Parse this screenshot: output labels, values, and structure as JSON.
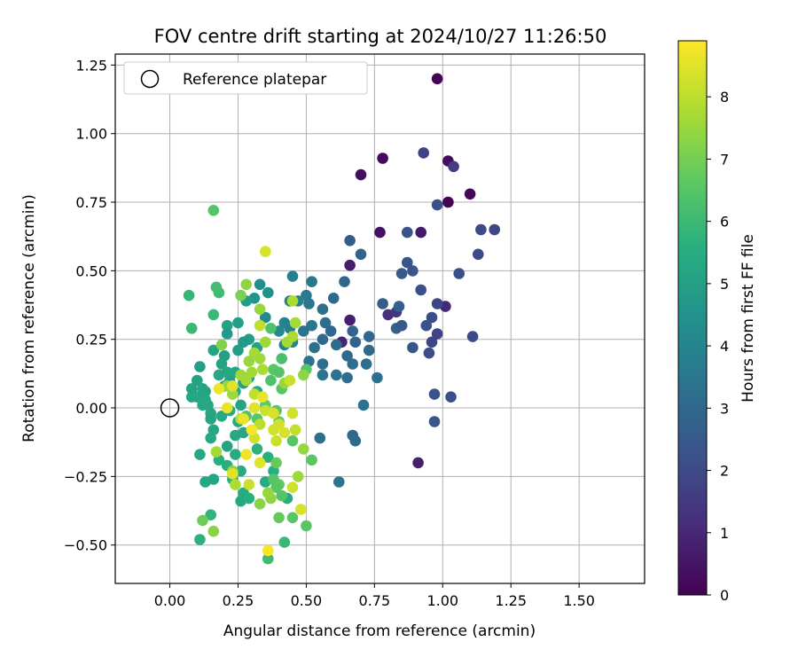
{
  "chart_data": {
    "type": "scatter",
    "title": "FOV centre drift starting at 2024/10/27 11:26:50",
    "xlabel": "Angular distance from reference (arcmin)",
    "ylabel": "Rotation from reference (arcmin)",
    "xlim": [
      -0.2,
      1.74
    ],
    "ylim": [
      -0.64,
      1.29
    ],
    "xticks": [
      0.0,
      0.25,
      0.5,
      0.75,
      1.0,
      1.25,
      1.5
    ],
    "xtick_labels": [
      "0.00",
      "0.25",
      "0.50",
      "0.75",
      "1.00",
      "1.25",
      "1.50"
    ],
    "yticks": [
      -0.5,
      -0.25,
      0.0,
      0.25,
      0.5,
      0.75,
      1.0,
      1.25
    ],
    "ytick_labels": [
      "−0.50",
      "−0.25",
      "0.00",
      "0.25",
      "0.50",
      "0.75",
      "1.00",
      "1.25"
    ],
    "grid": true,
    "legend": {
      "placement": "top-left",
      "label": "Reference platepar"
    },
    "reference_point": {
      "x": 0.0,
      "y": 0.0
    },
    "colorbar": {
      "label": "Hours from first FF file",
      "colormap": "viridis",
      "range": [
        0,
        8.9
      ],
      "ticks": [
        0,
        1,
        2,
        3,
        4,
        5,
        6,
        7,
        8
      ],
      "tick_labels": [
        "0",
        "1",
        "2",
        "3",
        "4",
        "5",
        "6",
        "7",
        "8"
      ]
    },
    "points": [
      [
        0.98,
        1.2,
        0.1
      ],
      [
        1.02,
        0.9,
        0.3
      ],
      [
        0.78,
        0.91,
        0.2
      ],
      [
        0.7,
        0.85,
        0.3
      ],
      [
        1.1,
        0.78,
        0.2
      ],
      [
        1.02,
        0.75,
        0.1
      ],
      [
        0.77,
        0.64,
        0.4
      ],
      [
        0.92,
        0.64,
        0.6
      ],
      [
        0.66,
        0.52,
        0.7
      ],
      [
        0.66,
        0.32,
        0.8
      ],
      [
        0.63,
        0.24,
        0.9
      ],
      [
        0.91,
        -0.2,
        0.8
      ],
      [
        1.01,
        0.37,
        1.0
      ],
      [
        0.93,
        0.93,
        1.8
      ],
      [
        1.04,
        0.88,
        1.6
      ],
      [
        0.98,
        0.74,
        2.2
      ],
      [
        1.14,
        0.65,
        2.0
      ],
      [
        1.19,
        0.65,
        1.9
      ],
      [
        1.13,
        0.56,
        2.0
      ],
      [
        1.06,
        0.49,
        2.2
      ],
      [
        0.87,
        0.64,
        2.3
      ],
      [
        0.87,
        0.53,
        2.4
      ],
      [
        0.89,
        0.5,
        2.4
      ],
      [
        0.85,
        0.49,
        2.5
      ],
      [
        0.92,
        0.43,
        2.2
      ],
      [
        0.98,
        0.38,
        1.9
      ],
      [
        0.96,
        0.33,
        2.1
      ],
      [
        0.98,
        0.27,
        1.8
      ],
      [
        0.96,
        0.24,
        1.9
      ],
      [
        0.94,
        0.3,
        2.3
      ],
      [
        1.11,
        0.26,
        2.0
      ],
      [
        0.89,
        0.22,
        2.4
      ],
      [
        0.95,
        0.2,
        2.1
      ],
      [
        0.97,
        0.05,
        2.3
      ],
      [
        1.03,
        0.04,
        2.2
      ],
      [
        0.97,
        -0.05,
        2.4
      ],
      [
        0.8,
        0.34,
        1.2
      ],
      [
        0.83,
        0.35,
        1.4
      ],
      [
        0.84,
        0.37,
        2.7
      ],
      [
        0.78,
        0.38,
        2.6
      ],
      [
        0.83,
        0.29,
        2.8
      ],
      [
        0.85,
        0.3,
        2.5
      ],
      [
        0.66,
        0.61,
        2.6
      ],
      [
        0.7,
        0.56,
        2.8
      ],
      [
        0.64,
        0.46,
        3.0
      ],
      [
        0.6,
        0.4,
        3.1
      ],
      [
        0.56,
        0.36,
        3.3
      ],
      [
        0.57,
        0.31,
        3.2
      ],
      [
        0.59,
        0.28,
        3.0
      ],
      [
        0.67,
        0.28,
        2.9
      ],
      [
        0.68,
        0.24,
        2.9
      ],
      [
        0.73,
        0.26,
        3.0
      ],
      [
        0.61,
        0.23,
        3.2
      ],
      [
        0.56,
        0.25,
        3.1
      ],
      [
        0.53,
        0.22,
        3.3
      ],
      [
        0.51,
        0.17,
        3.4
      ],
      [
        0.49,
        0.28,
        3.4
      ],
      [
        0.52,
        0.3,
        3.5
      ],
      [
        0.52,
        0.46,
        3.6
      ],
      [
        0.5,
        0.41,
        3.7
      ],
      [
        0.51,
        0.38,
        3.5
      ],
      [
        0.45,
        0.48,
        3.8
      ],
      [
        0.44,
        0.39,
        3.9
      ],
      [
        0.47,
        0.39,
        3.9
      ],
      [
        0.42,
        0.31,
        4.0
      ],
      [
        0.45,
        0.24,
        4.1
      ],
      [
        0.42,
        0.23,
        4.0
      ],
      [
        0.44,
        0.29,
        3.9
      ],
      [
        0.4,
        0.28,
        4.2
      ],
      [
        0.35,
        0.33,
        4.2
      ],
      [
        0.65,
        0.19,
        3.1
      ],
      [
        0.67,
        0.16,
        3.2
      ],
      [
        0.73,
        0.21,
        3.1
      ],
      [
        0.72,
        0.16,
        3.2
      ],
      [
        0.76,
        0.11,
        3.3
      ],
      [
        0.65,
        0.11,
        3.2
      ],
      [
        0.61,
        0.12,
        3.4
      ],
      [
        0.56,
        0.16,
        3.3
      ],
      [
        0.56,
        0.12,
        3.5
      ],
      [
        0.71,
        0.01,
        3.4
      ],
      [
        0.67,
        -0.1,
        3.0
      ],
      [
        0.68,
        -0.12,
        3.1
      ],
      [
        0.55,
        -0.11,
        3.3
      ],
      [
        0.62,
        -0.27,
        3.5
      ],
      [
        0.33,
        0.45,
        4.4
      ],
      [
        0.36,
        0.42,
        4.5
      ],
      [
        0.31,
        0.4,
        4.6
      ],
      [
        0.28,
        0.39,
        4.9
      ],
      [
        0.25,
        0.31,
        5.0
      ],
      [
        0.21,
        0.3,
        5.1
      ],
      [
        0.21,
        0.27,
        4.8
      ],
      [
        0.25,
        0.21,
        4.9
      ],
      [
        0.29,
        0.25,
        5.0
      ],
      [
        0.32,
        0.22,
        5.1
      ],
      [
        0.27,
        0.24,
        4.8
      ],
      [
        0.16,
        0.21,
        5.2
      ],
      [
        0.2,
        0.19,
        5.0
      ],
      [
        0.19,
        0.16,
        5.2
      ],
      [
        0.21,
        0.13,
        5.4
      ],
      [
        0.24,
        0.13,
        5.3
      ],
      [
        0.22,
        0.1,
        5.1
      ],
      [
        0.24,
        0.06,
        5.3
      ],
      [
        0.27,
        0.09,
        5.0
      ],
      [
        0.29,
        0.11,
        5.2
      ],
      [
        0.32,
        0.06,
        5.5
      ],
      [
        0.26,
        0.01,
        5.2
      ],
      [
        0.22,
        -0.01,
        5.4
      ],
      [
        0.25,
        -0.05,
        5.3
      ],
      [
        0.19,
        -0.03,
        5.4
      ],
      [
        0.15,
        -0.02,
        5.3
      ],
      [
        0.13,
        0.03,
        5.4
      ],
      [
        0.1,
        0.04,
        5.3
      ],
      [
        0.08,
        0.04,
        5.4
      ],
      [
        0.08,
        0.07,
        5.2
      ],
      [
        0.1,
        0.1,
        5.1
      ],
      [
        0.11,
        0.15,
        5.0
      ],
      [
        0.12,
        0.07,
        5.3
      ],
      [
        0.14,
        0.01,
        5.4
      ],
      [
        0.15,
        -0.04,
        5.2
      ],
      [
        0.16,
        -0.08,
        5.3
      ],
      [
        0.12,
        0.01,
        5.4
      ],
      [
        0.13,
        0.06,
        5.2
      ],
      [
        0.2,
        0.08,
        5.1
      ],
      [
        0.18,
        0.12,
        5.3
      ],
      [
        0.24,
        -0.1,
        5.4
      ],
      [
        0.27,
        -0.09,
        5.3
      ],
      [
        0.15,
        -0.11,
        5.4
      ],
      [
        0.21,
        -0.14,
        5.2
      ],
      [
        0.24,
        -0.17,
        5.5
      ],
      [
        0.18,
        -0.19,
        5.6
      ],
      [
        0.11,
        -0.17,
        5.4
      ],
      [
        0.26,
        -0.23,
        5.5
      ],
      [
        0.21,
        -0.21,
        5.6
      ],
      [
        0.23,
        -0.26,
        5.7
      ],
      [
        0.13,
        -0.27,
        5.4
      ],
      [
        0.16,
        -0.26,
        5.3
      ],
      [
        0.27,
        -0.31,
        5.5
      ],
      [
        0.26,
        -0.34,
        5.4
      ],
      [
        0.29,
        -0.33,
        5.6
      ],
      [
        0.35,
        -0.27,
        5.5
      ],
      [
        0.38,
        -0.23,
        5.6
      ],
      [
        0.36,
        -0.18,
        5.6
      ],
      [
        0.32,
        -0.15,
        5.7
      ],
      [
        0.15,
        -0.39,
        5.8
      ],
      [
        0.11,
        -0.48,
        5.7
      ],
      [
        0.43,
        -0.33,
        5.5
      ],
      [
        0.42,
        -0.49,
        6.0
      ],
      [
        0.36,
        -0.55,
        6.1
      ],
      [
        0.07,
        0.41,
        5.9
      ],
      [
        0.08,
        0.29,
        6.0
      ],
      [
        0.16,
        0.34,
        6.0
      ],
      [
        0.18,
        0.42,
        6.1
      ],
      [
        0.17,
        0.44,
        6.2
      ],
      [
        0.16,
        0.72,
        6.5
      ],
      [
        0.37,
        0.29,
        6.4
      ],
      [
        0.41,
        0.18,
        6.3
      ],
      [
        0.38,
        0.14,
        6.6
      ],
      [
        0.4,
        0.13,
        6.5
      ],
      [
        0.37,
        0.1,
        6.4
      ],
      [
        0.41,
        0.07,
        6.6
      ],
      [
        0.5,
        0.14,
        6.6
      ],
      [
        0.52,
        -0.19,
        6.6
      ],
      [
        0.35,
        0.01,
        6.7
      ],
      [
        0.39,
        -0.01,
        6.6
      ],
      [
        0.32,
        -0.04,
        6.6
      ],
      [
        0.28,
        -0.03,
        6.5
      ],
      [
        0.4,
        -0.05,
        6.7
      ],
      [
        0.45,
        -0.12,
        6.6
      ],
      [
        0.39,
        -0.2,
        6.8
      ],
      [
        0.38,
        -0.26,
        6.5
      ],
      [
        0.4,
        -0.28,
        6.7
      ],
      [
        0.39,
        -0.29,
        6.6
      ],
      [
        0.41,
        -0.32,
        6.5
      ],
      [
        0.45,
        -0.4,
        6.6
      ],
      [
        0.5,
        -0.43,
        6.6
      ],
      [
        0.4,
        -0.4,
        6.8
      ],
      [
        0.12,
        -0.41,
        6.9
      ],
      [
        0.16,
        -0.45,
        7.3
      ],
      [
        0.19,
        0.23,
        7.2
      ],
      [
        0.26,
        0.41,
        7.1
      ],
      [
        0.28,
        0.45,
        7.4
      ],
      [
        0.33,
        0.36,
        7.5
      ],
      [
        0.35,
        0.24,
        7.6
      ],
      [
        0.31,
        0.2,
        7.7
      ],
      [
        0.29,
        0.17,
        7.5
      ],
      [
        0.3,
        0.13,
        7.7
      ],
      [
        0.26,
        0.12,
        7.6
      ],
      [
        0.28,
        0.1,
        7.7
      ],
      [
        0.34,
        0.14,
        7.8
      ],
      [
        0.33,
        0.18,
        7.6
      ],
      [
        0.42,
        0.09,
        7.5
      ],
      [
        0.43,
        0.24,
        7.7
      ],
      [
        0.45,
        0.26,
        7.8
      ],
      [
        0.46,
        0.31,
        7.7
      ],
      [
        0.45,
        0.39,
        7.8
      ],
      [
        0.49,
        0.12,
        7.4
      ],
      [
        0.49,
        -0.15,
        7.5
      ],
      [
        0.47,
        -0.25,
        7.6
      ],
      [
        0.37,
        -0.33,
        7.4
      ],
      [
        0.33,
        -0.35,
        7.3
      ],
      [
        0.36,
        -0.31,
        7.5
      ],
      [
        0.23,
        -0.23,
        7.4
      ],
      [
        0.17,
        -0.16,
        7.7
      ],
      [
        0.24,
        -0.28,
        7.8
      ],
      [
        0.21,
        0.08,
        7.5
      ],
      [
        0.23,
        0.05,
        7.6
      ],
      [
        0.26,
        -0.04,
        7.9
      ],
      [
        0.31,
        0.05,
        8.1
      ],
      [
        0.33,
        -0.06,
        8.0
      ],
      [
        0.35,
        -0.01,
        8.2
      ],
      [
        0.38,
        -0.08,
        8.3
      ],
      [
        0.38,
        -0.02,
        8.4
      ],
      [
        0.4,
        -0.06,
        8.3
      ],
      [
        0.42,
        -0.09,
        8.4
      ],
      [
        0.39,
        -0.12,
        8.2
      ],
      [
        0.46,
        -0.08,
        8.1
      ],
      [
        0.45,
        -0.02,
        8.3
      ],
      [
        0.44,
        0.1,
        8.2
      ],
      [
        0.33,
        0.3,
        8.1
      ],
      [
        0.35,
        0.57,
        8.4
      ],
      [
        0.31,
        -0.11,
        8.3
      ],
      [
        0.33,
        -0.2,
        8.5
      ],
      [
        0.29,
        -0.28,
        8.2
      ],
      [
        0.23,
        -0.24,
        8.5
      ],
      [
        0.21,
        0.0,
        8.6
      ],
      [
        0.18,
        0.07,
        8.7
      ],
      [
        0.23,
        0.08,
        8.5
      ],
      [
        0.27,
        -0.04,
        8.6
      ],
      [
        0.31,
        0.0,
        8.5
      ],
      [
        0.34,
        0.04,
        8.6
      ],
      [
        0.48,
        -0.37,
        8.4
      ],
      [
        0.45,
        -0.29,
        8.3
      ],
      [
        0.36,
        -0.52,
        8.8
      ],
      [
        0.3,
        -0.08,
        8.8
      ],
      [
        0.28,
        -0.17,
        8.7
      ]
    ]
  }
}
